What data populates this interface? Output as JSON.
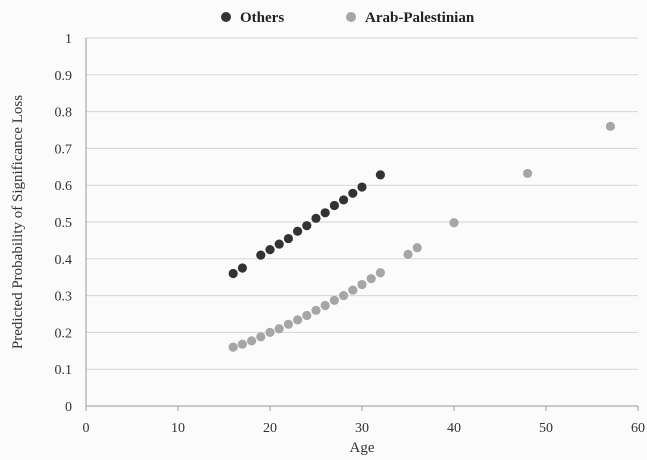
{
  "chart_data": {
    "type": "scatter",
    "title": "",
    "xlabel": "Age",
    "ylabel": "Predicted Probability of Significance Loss",
    "xlim": [
      0,
      60
    ],
    "ylim": [
      0,
      1
    ],
    "x_ticks": [
      0,
      10,
      20,
      30,
      40,
      50,
      60
    ],
    "y_ticks": [
      0,
      0.1,
      0.2,
      0.3,
      0.4,
      0.5,
      0.6,
      0.7,
      0.8,
      0.9,
      1
    ],
    "grid": "horizontal",
    "legend_position": "top",
    "series": [
      {
        "name": "Others",
        "color": "#333333",
        "x": [
          16,
          17,
          19,
          20,
          21,
          22,
          23,
          24,
          25,
          26,
          27,
          28,
          29,
          30,
          32
        ],
        "y": [
          0.36,
          0.375,
          0.41,
          0.425,
          0.44,
          0.455,
          0.475,
          0.49,
          0.51,
          0.525,
          0.545,
          0.56,
          0.578,
          0.595,
          0.628
        ]
      },
      {
        "name": "Arab-Palestinian",
        "color": "#a6a6a6",
        "x": [
          16,
          17,
          18,
          19,
          20,
          21,
          22,
          23,
          24,
          25,
          26,
          27,
          28,
          29,
          30,
          31,
          32,
          35,
          36,
          40,
          48,
          57
        ],
        "y": [
          0.16,
          0.168,
          0.177,
          0.188,
          0.2,
          0.21,
          0.222,
          0.234,
          0.246,
          0.26,
          0.273,
          0.287,
          0.3,
          0.315,
          0.33,
          0.346,
          0.362,
          0.412,
          0.43,
          0.498,
          0.632,
          0.76
        ]
      }
    ]
  }
}
